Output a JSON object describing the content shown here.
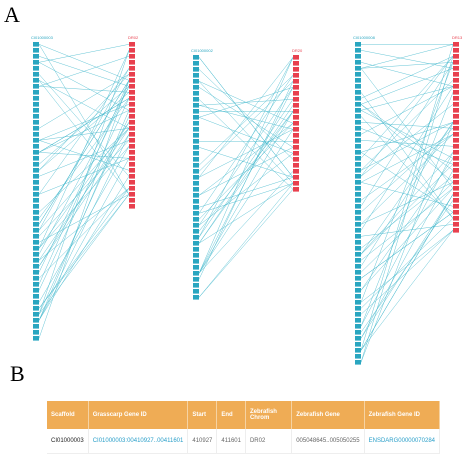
{
  "panel_a": {
    "label": "A",
    "blocks": [
      {
        "left_label": "CI01000003",
        "right_label": "DR02"
      },
      {
        "left_label": "CI01000002",
        "right_label": "DR20"
      },
      {
        "left_label": "CI01000008",
        "right_label": "DR13"
      }
    ]
  },
  "panel_b": {
    "label": "B",
    "table": {
      "header": [
        "Scaffold",
        "Grasscarp Gene ID",
        "Start",
        "End",
        "Zebrafish Chrom",
        "Zebrafish Gene",
        "Zebrafish Gene ID"
      ],
      "rows": [
        [
          "CI01000003",
          "CI01000003:00410927..00411601",
          "410927",
          "411601",
          "DR02",
          "005048645..005050255",
          "ENSDARG00000070284"
        ]
      ]
    }
  }
}
